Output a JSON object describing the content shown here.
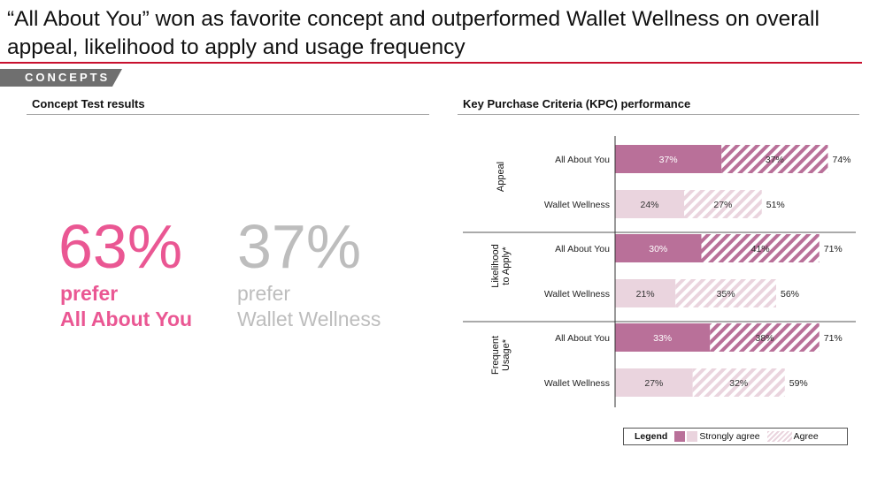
{
  "headline": "“All About You” won as favorite concept and outperformed Wallet Wellness on overall appeal, likelihood to apply and usage frequency",
  "tag": "CONCEPTS",
  "left": {
    "title": "Concept Test results",
    "winner": {
      "pct": "63%",
      "line1": "prefer",
      "line2": "All About You"
    },
    "runner": {
      "pct": "37%",
      "line1": "prefer",
      "line2": "Wallet Wellness"
    }
  },
  "right": {
    "title": "Key Purchase Criteria (KPC) performance"
  },
  "legend": {
    "title": "Legend",
    "strongly": "Strongly agree",
    "agree": "Agree"
  },
  "colors": {
    "accent_pink": "#ea5793",
    "muted_grey": "#bdbdbd",
    "aay_strong": "#b97099",
    "aay_agree": "#b97099",
    "ww_strong": "#ead4de",
    "ww_agree": "#ead4de",
    "rule_red": "#c8102e",
    "tag_grey": "#6f6f6f"
  },
  "chart_data": {
    "type": "bar",
    "orientation": "horizontal",
    "stacked": true,
    "title": "Key Purchase Criteria (KPC) performance",
    "xlim": [
      0,
      100
    ],
    "groups": [
      {
        "label": "Appeal",
        "label_lines": [
          "Appeal"
        ],
        "rows": [
          {
            "concept": "All About You",
            "strongly_agree": 37,
            "agree": 37,
            "total": 74
          },
          {
            "concept": "Wallet Wellness",
            "strongly_agree": 24,
            "agree": 27,
            "total": 51
          }
        ]
      },
      {
        "label": "Likelihood to Apply*",
        "label_lines": [
          "Likelihood",
          "to Apply*"
        ],
        "rows": [
          {
            "concept": "All About You",
            "strongly_agree": 30,
            "agree": 41,
            "total": 71
          },
          {
            "concept": "Wallet Wellness",
            "strongly_agree": 21,
            "agree": 35,
            "total": 56
          }
        ]
      },
      {
        "label": "Frequent Usage*",
        "label_lines": [
          "Frequent",
          "Usage*"
        ],
        "rows": [
          {
            "concept": "All About You",
            "strongly_agree": 33,
            "agree": 38,
            "total": 71
          },
          {
            "concept": "Wallet Wellness",
            "strongly_agree": 27,
            "agree": 32,
            "total": 59
          }
        ]
      }
    ],
    "legend": [
      "Strongly agree",
      "Agree"
    ],
    "legend_position": "bottom-right"
  }
}
